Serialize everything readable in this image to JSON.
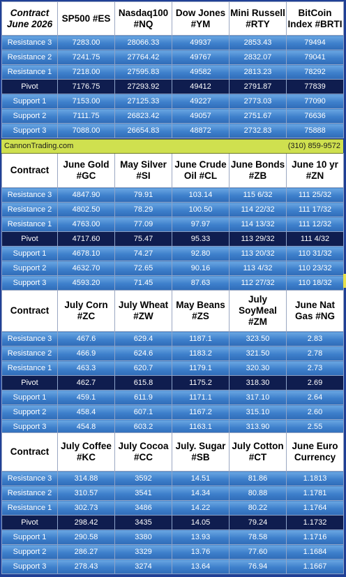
{
  "banner": {
    "left": "CannonTrading.com",
    "right": "(310) 859-9572"
  },
  "sections": [
    {
      "header": [
        "Contract June 2026",
        "SP500 #ES",
        "Nasdaq100 #NQ",
        "Dow Jones #YM",
        "Mini Russell #RTY",
        "BitCoin Index #BRTI"
      ],
      "rows": [
        [
          "Resistance 3",
          "7283.00",
          "28066.33",
          "49937",
          "2853.43",
          "79494"
        ],
        [
          "Resistance 2",
          "7241.75",
          "27764.42",
          "49767",
          "2832.07",
          "79041"
        ],
        [
          "Resistance 1",
          "7218.00",
          "27595.83",
          "49582",
          "2813.23",
          "78292"
        ],
        [
          "Pivot",
          "7176.75",
          "27293.92",
          "49412",
          "2791.87",
          "77839"
        ],
        [
          "Support 1",
          "7153.00",
          "27125.33",
          "49227",
          "2773.03",
          "77090"
        ],
        [
          "Support 2",
          "7111.75",
          "26823.42",
          "49057",
          "2751.67",
          "76636"
        ],
        [
          "Support 3",
          "7088.00",
          "26654.83",
          "48872",
          "2732.83",
          "75888"
        ]
      ]
    },
    {
      "header": [
        "Contract",
        "June Gold #GC",
        "May Silver #SI",
        "June Crude Oil #CL",
        "June Bonds #ZB",
        "June 10 yr #ZN"
      ],
      "rows": [
        [
          "Resistance 3",
          "4847.90",
          "79.91",
          "103.14",
          "115  6/32",
          "111 25/32"
        ],
        [
          "Resistance 2",
          "4802.50",
          "78.29",
          "100.50",
          "114 22/32",
          "111 17/32"
        ],
        [
          "Resistance 1",
          "4763.00",
          "77.09",
          "97.97",
          "114 13/32",
          "111 12/32"
        ],
        [
          "Pivot",
          "4717.60",
          "75.47",
          "95.33",
          "113 29/32",
          "111  4/32"
        ],
        [
          "Support 1",
          "4678.10",
          "74.27",
          "92.80",
          "113 20/32",
          "110 31/32"
        ],
        [
          "Support 2",
          "4632.70",
          "72.65",
          "90.16",
          "113  4/32",
          "110 23/32"
        ],
        [
          "Support 3",
          "4593.20",
          "71.45",
          "87.63",
          "112 27/32",
          "110 18/32"
        ]
      ]
    },
    {
      "header": [
        "Contract",
        "July Corn #ZC",
        "July  Wheat #ZW",
        "May Beans #ZS",
        "July SoyMeal #ZM",
        "June Nat Gas #NG"
      ],
      "rows": [
        [
          "Resistance 3",
          "467.6",
          "629.4",
          "1187.1",
          "323.50",
          "2.83"
        ],
        [
          "Resistance 2",
          "466.9",
          "624.6",
          "1183.2",
          "321.50",
          "2.78"
        ],
        [
          "Resistance 1",
          "463.3",
          "620.7",
          "1179.1",
          "320.30",
          "2.73"
        ],
        [
          "Pivot",
          "462.7",
          "615.8",
          "1175.2",
          "318.30",
          "2.69"
        ],
        [
          "Support 1",
          "459.1",
          "611.9",
          "1171.1",
          "317.10",
          "2.64"
        ],
        [
          "Support 2",
          "458.4",
          "607.1",
          "1167.2",
          "315.10",
          "2.60"
        ],
        [
          "Support 3",
          "454.8",
          "603.2",
          "1163.1",
          "313.90",
          "2.55"
        ]
      ]
    },
    {
      "header": [
        "Contract",
        "July Coffee #KC",
        "July Cocoa #CC",
        "July. Sugar #SB",
        "July Cotton #CT",
        "June Euro Currency"
      ],
      "rows": [
        [
          "Resistance 3",
          "314.88",
          "3592",
          "14.51",
          "81.86",
          "1.1813"
        ],
        [
          "Resistance 2",
          "310.57",
          "3541",
          "14.34",
          "80.88",
          "1.1781"
        ],
        [
          "Resistance 1",
          "302.73",
          "3486",
          "14.22",
          "80.22",
          "1.1764"
        ],
        [
          "Pivot",
          "298.42",
          "3435",
          "14.05",
          "79.24",
          "1.1732"
        ],
        [
          "Support 1",
          "290.58",
          "3380",
          "13.93",
          "78.58",
          "1.1716"
        ],
        [
          "Support 2",
          "286.27",
          "3329",
          "13.76",
          "77.60",
          "1.1684"
        ],
        [
          "Support 3",
          "278.43",
          "3274",
          "13.64",
          "76.94",
          "1.1667"
        ]
      ]
    }
  ]
}
